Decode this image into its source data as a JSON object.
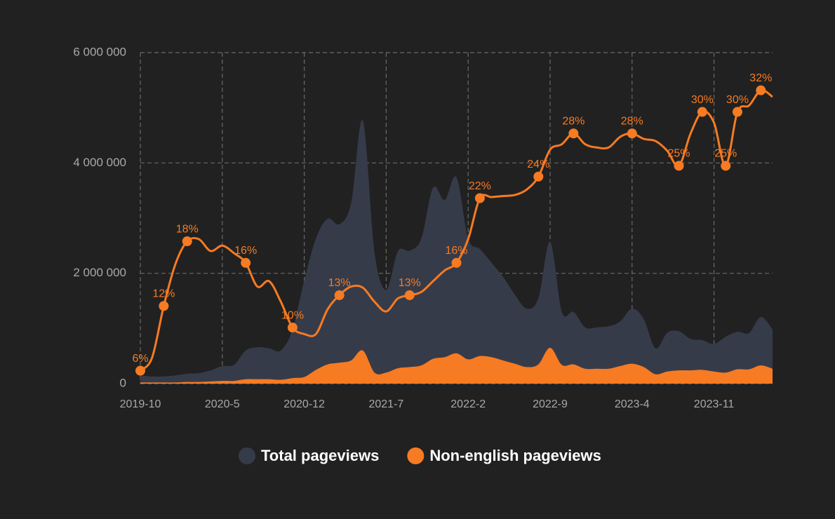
{
  "chart_data": {
    "type": "area-line",
    "categories": [
      "2019-10",
      null,
      null,
      null,
      null,
      null,
      null,
      "2020-5",
      null,
      null,
      null,
      null,
      null,
      null,
      "2020-12",
      null,
      null,
      null,
      null,
      null,
      null,
      "2021-7",
      null,
      null,
      null,
      null,
      null,
      null,
      "2022-2",
      null,
      null,
      null,
      null,
      null,
      null,
      "2022-9",
      null,
      null,
      null,
      null,
      null,
      null,
      "2023-4",
      null,
      null,
      null,
      null,
      null,
      null,
      "2023-11",
      null,
      null,
      null,
      null,
      null
    ],
    "ylim": [
      0,
      6000000
    ],
    "yticks": [
      0,
      {
        "value": 2000000,
        "label": "2 000 000"
      },
      {
        "value": 4000000,
        "label": "4 000 000"
      },
      {
        "value": 6000000,
        "label": "6 000 000"
      }
    ],
    "y2lim": [
      4.8,
      35.5
    ],
    "grid": true,
    "legend": "bottom",
    "series": [
      {
        "name": "Total pageviews",
        "color": "#363b4a",
        "values": [
          150000,
          130000,
          130000,
          150000,
          180000,
          190000,
          240000,
          320000,
          340000,
          600000,
          660000,
          640000,
          600000,
          980000,
          1870000,
          2630000,
          2990000,
          2890000,
          3270000,
          4770000,
          2380000,
          1700000,
          2400000,
          2410000,
          2630000,
          3550000,
          3330000,
          3740000,
          2630000,
          2440000,
          2190000,
          1930000,
          1610000,
          1360000,
          1550000,
          2570000,
          1300000,
          1300000,
          1020000,
          1020000,
          1040000,
          1130000,
          1360000,
          1170000,
          640000,
          920000,
          950000,
          810000,
          790000,
          720000,
          850000,
          940000,
          920000,
          1210000,
          980000
        ]
      },
      {
        "name": "Non-english pageviews",
        "color": "#f77b22",
        "values": [
          20000,
          20000,
          20000,
          20000,
          30000,
          30000,
          40000,
          50000,
          50000,
          80000,
          80000,
          80000,
          70000,
          100000,
          120000,
          250000,
          350000,
          380000,
          420000,
          600000,
          200000,
          200000,
          280000,
          300000,
          330000,
          450000,
          480000,
          550000,
          440000,
          500000,
          480000,
          420000,
          360000,
          300000,
          350000,
          650000,
          340000,
          350000,
          270000,
          270000,
          270000,
          320000,
          360000,
          300000,
          170000,
          220000,
          240000,
          240000,
          250000,
          220000,
          200000,
          260000,
          260000,
          330000,
          270000
        ]
      },
      {
        "color": "#f77b22",
        "axis": "y2",
        "values": [
          6,
          7.2,
          12,
          15.9,
          18,
          18.2,
          17.1,
          17.6,
          16.9,
          16,
          13.8,
          14.3,
          12.4,
          10,
          9.4,
          9.4,
          11.7,
          13,
          13.8,
          13.7,
          12.4,
          11.5,
          12.7,
          13,
          13.3,
          14.3,
          15.3,
          16,
          18.2,
          22,
          22.1,
          22.2,
          22.3,
          22.8,
          24,
          26.5,
          27,
          28,
          27,
          26.7,
          26.7,
          27.7,
          28,
          27.5,
          27.3,
          26.4,
          25,
          28,
          30,
          29,
          25,
          30,
          30.6,
          32,
          31.4
        ],
        "value_labels": [
          "6%",
          null,
          "12%",
          null,
          "18%",
          null,
          null,
          null,
          null,
          "16%",
          null,
          null,
          null,
          "10%",
          null,
          null,
          null,
          "13%",
          null,
          null,
          null,
          null,
          null,
          "13%",
          null,
          null,
          null,
          "16%",
          null,
          "22%",
          null,
          null,
          null,
          null,
          "24%",
          null,
          null,
          "28%",
          null,
          null,
          null,
          null,
          "28%",
          null,
          null,
          null,
          "25%",
          null,
          "30%",
          null,
          "25%",
          "30%",
          null,
          "32%",
          null
        ]
      }
    ]
  }
}
